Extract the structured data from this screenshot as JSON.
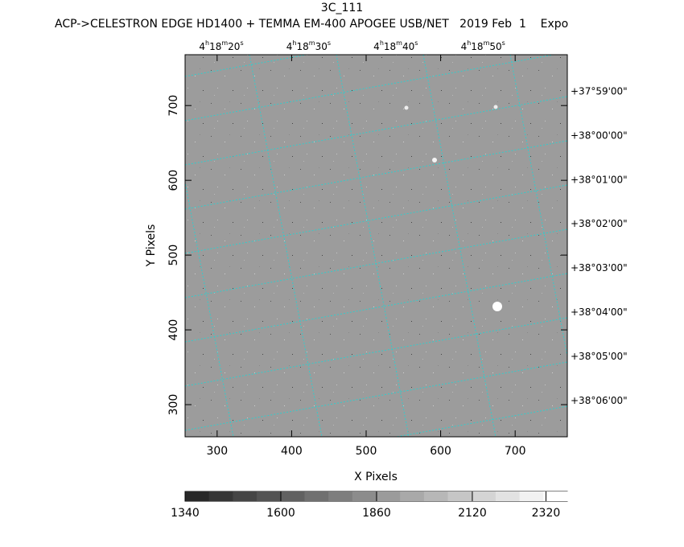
{
  "chart_data": {
    "type": "image",
    "title": "3C_111",
    "subtitle": "ACP->CELESTRON EDGE HD1400 + TEMMA EM-400 APOGEE USB/NET   2019 Feb  1    Expo",
    "x_label": "X Pixels",
    "y_label": "Y Pixels",
    "xlim": [
      257,
      770
    ],
    "xticks": [
      300,
      400,
      500,
      600,
      700
    ],
    "ylim": [
      257,
      768
    ],
    "yticks": [
      300,
      400,
      500,
      600,
      700
    ],
    "ra_labels": [
      [
        "4",
        "h",
        "18",
        "m",
        "20",
        "s"
      ],
      [
        "4",
        "h",
        "18",
        "m",
        "30",
        "s"
      ],
      [
        "4",
        "h",
        "18",
        "m",
        "40",
        "s"
      ],
      [
        "4",
        "h",
        "18",
        "m",
        "50",
        "s"
      ]
    ],
    "dec_labels": [
      "+37°59'00\"",
      "+38°00'00\"",
      "+38°01'00\"",
      "+38°02'00\"",
      "+38°03'00\"",
      "+38°04'00\"",
      "+38°05'00\"",
      "+38°06'00\""
    ],
    "colorbar": {
      "lim": [
        1340,
        2378
      ],
      "ticks": [
        1340,
        1600,
        1860,
        2120,
        2320
      ]
    }
  }
}
